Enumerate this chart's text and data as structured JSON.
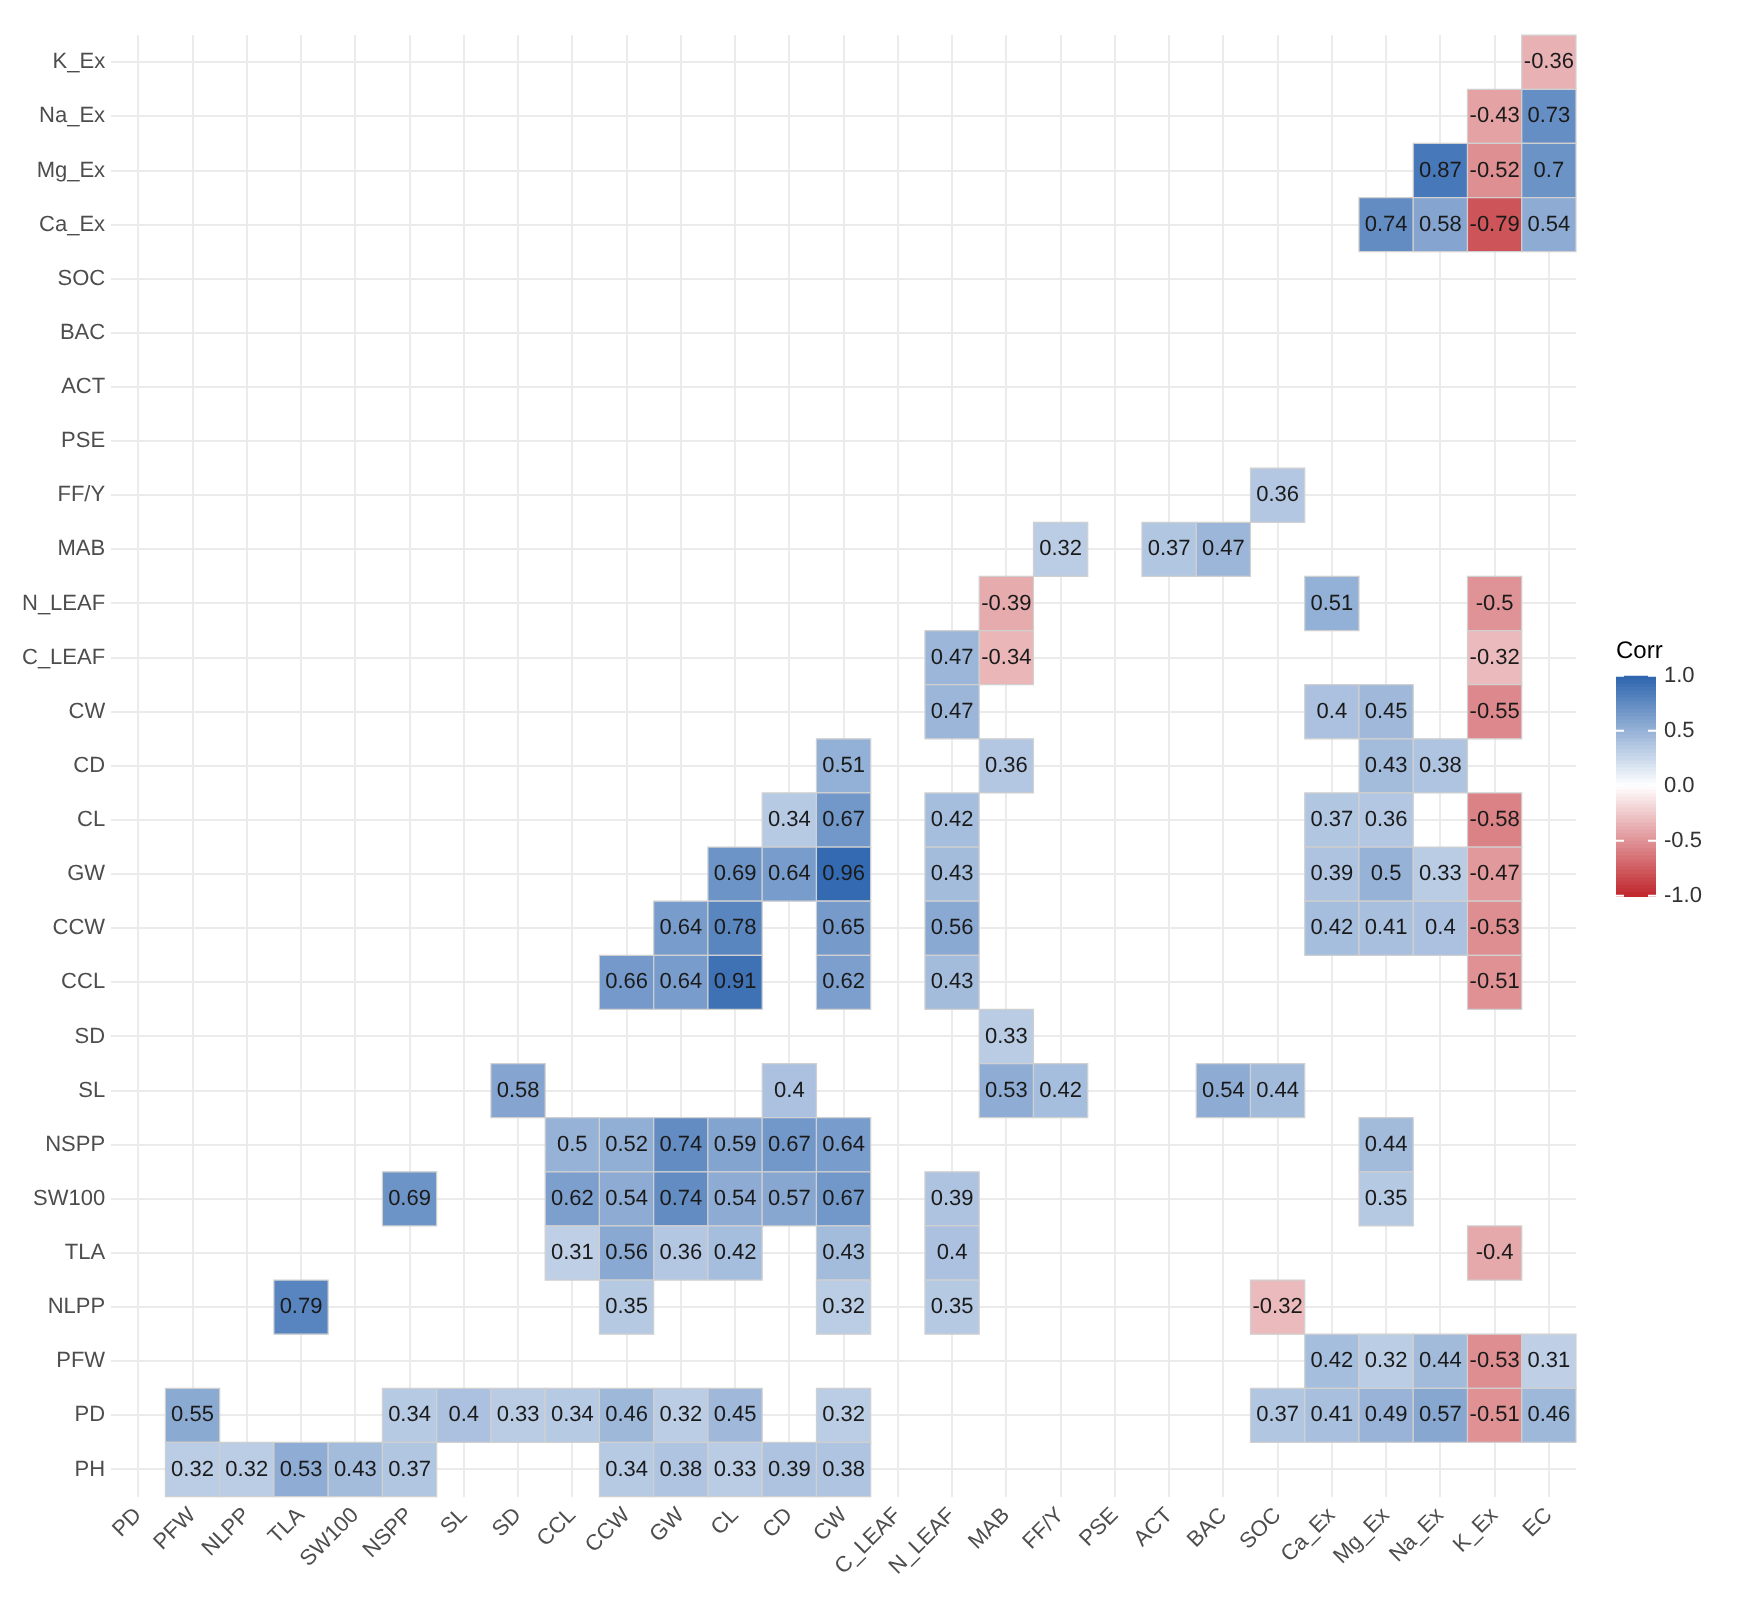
{
  "chart_data": {
    "type": "heatmap",
    "legend_title": "Corr",
    "categories": [
      "PD",
      "PFW",
      "NLPP",
      "TLA",
      "SW100",
      "NSPP",
      "SL",
      "SD",
      "CCL",
      "CCW",
      "GW",
      "CL",
      "CD",
      "CW",
      "C_LEAF",
      "N_LEAF",
      "MAB",
      "FF/Y",
      "PSE",
      "ACT",
      "BAC",
      "SOC",
      "Ca_Ex",
      "Mg_Ex",
      "Na_Ex",
      "K_Ex",
      "EC"
    ],
    "y_categories": [
      "K_Ex",
      "Na_Ex",
      "Mg_Ex",
      "Ca_Ex",
      "SOC",
      "BAC",
      "ACT",
      "PSE",
      "FF/Y",
      "MAB",
      "N_LEAF",
      "C_LEAF",
      "CW",
      "CD",
      "CL",
      "GW",
      "CCW",
      "CCL",
      "SD",
      "SL",
      "NSPP",
      "SW100",
      "TLA",
      "NLPP",
      "PFW",
      "PD",
      "PH"
    ],
    "cells": [
      [
        null,
        null,
        null,
        null,
        null,
        null,
        null,
        null,
        null,
        null,
        null,
        null,
        null,
        null,
        null,
        null,
        null,
        null,
        null,
        null,
        null,
        null,
        null,
        null,
        null,
        null,
        -0.36
      ],
      [
        null,
        null,
        null,
        null,
        null,
        null,
        null,
        null,
        null,
        null,
        null,
        null,
        null,
        null,
        null,
        null,
        null,
        null,
        null,
        null,
        null,
        null,
        null,
        null,
        null,
        -0.43,
        0.73
      ],
      [
        null,
        null,
        null,
        null,
        null,
        null,
        null,
        null,
        null,
        null,
        null,
        null,
        null,
        null,
        null,
        null,
        null,
        null,
        null,
        null,
        null,
        null,
        null,
        null,
        0.87,
        -0.52,
        0.7
      ],
      [
        null,
        null,
        null,
        null,
        null,
        null,
        null,
        null,
        null,
        null,
        null,
        null,
        null,
        null,
        null,
        null,
        null,
        null,
        null,
        null,
        null,
        null,
        null,
        0.74,
        0.58,
        -0.79,
        0.54
      ],
      [
        null,
        null,
        null,
        null,
        null,
        null,
        null,
        null,
        null,
        null,
        null,
        null,
        null,
        null,
        null,
        null,
        null,
        null,
        null,
        null,
        null,
        null,
        null,
        null,
        null,
        null,
        null
      ],
      [
        null,
        null,
        null,
        null,
        null,
        null,
        null,
        null,
        null,
        null,
        null,
        null,
        null,
        null,
        null,
        null,
        null,
        null,
        null,
        null,
        null,
        null,
        null,
        null,
        null,
        null,
        null
      ],
      [
        null,
        null,
        null,
        null,
        null,
        null,
        null,
        null,
        null,
        null,
        null,
        null,
        null,
        null,
        null,
        null,
        null,
        null,
        null,
        null,
        null,
        null,
        null,
        null,
        null,
        null,
        null
      ],
      [
        null,
        null,
        null,
        null,
        null,
        null,
        null,
        null,
        null,
        null,
        null,
        null,
        null,
        null,
        null,
        null,
        null,
        null,
        null,
        null,
        null,
        null,
        null,
        null,
        null,
        null,
        null
      ],
      [
        null,
        null,
        null,
        null,
        null,
        null,
        null,
        null,
        null,
        null,
        null,
        null,
        null,
        null,
        null,
        null,
        null,
        null,
        null,
        null,
        null,
        0.36,
        null,
        null,
        null,
        null,
        null
      ],
      [
        null,
        null,
        null,
        null,
        null,
        null,
        null,
        null,
        null,
        null,
        null,
        null,
        null,
        null,
        null,
        null,
        null,
        0.32,
        null,
        0.37,
        0.47,
        null,
        null,
        null,
        null,
        null,
        null
      ],
      [
        null,
        null,
        null,
        null,
        null,
        null,
        null,
        null,
        null,
        null,
        null,
        null,
        null,
        null,
        null,
        null,
        -0.39,
        null,
        null,
        null,
        null,
        null,
        0.51,
        null,
        null,
        -0.5,
        null
      ],
      [
        null,
        null,
        null,
        null,
        null,
        null,
        null,
        null,
        null,
        null,
        null,
        null,
        null,
        null,
        null,
        0.47,
        -0.34,
        null,
        null,
        null,
        null,
        null,
        null,
        null,
        null,
        -0.32,
        null
      ],
      [
        null,
        null,
        null,
        null,
        null,
        null,
        null,
        null,
        null,
        null,
        null,
        null,
        null,
        null,
        null,
        0.47,
        null,
        null,
        null,
        null,
        null,
        null,
        0.4,
        0.45,
        null,
        -0.55,
        null
      ],
      [
        null,
        null,
        null,
        null,
        null,
        null,
        null,
        null,
        null,
        null,
        null,
        null,
        null,
        0.51,
        null,
        null,
        0.36,
        null,
        null,
        null,
        null,
        null,
        null,
        0.43,
        0.38,
        null,
        null
      ],
      [
        null,
        null,
        null,
        null,
        null,
        null,
        null,
        null,
        null,
        null,
        null,
        null,
        0.34,
        0.67,
        null,
        0.42,
        null,
        null,
        null,
        null,
        null,
        null,
        0.37,
        0.36,
        null,
        -0.58,
        null
      ],
      [
        null,
        null,
        null,
        null,
        null,
        null,
        null,
        null,
        null,
        null,
        null,
        0.69,
        0.64,
        0.96,
        null,
        0.43,
        null,
        null,
        null,
        null,
        null,
        null,
        0.39,
        0.5,
        0.33,
        -0.47,
        null
      ],
      [
        null,
        null,
        null,
        null,
        null,
        null,
        null,
        null,
        null,
        null,
        0.64,
        0.78,
        null,
        0.65,
        null,
        0.56,
        null,
        null,
        null,
        null,
        null,
        null,
        0.42,
        0.41,
        0.4,
        -0.53,
        null
      ],
      [
        null,
        null,
        null,
        null,
        null,
        null,
        null,
        null,
        null,
        0.66,
        0.64,
        0.91,
        null,
        0.62,
        null,
        0.43,
        null,
        null,
        null,
        null,
        null,
        null,
        null,
        null,
        null,
        -0.51,
        null
      ],
      [
        null,
        null,
        null,
        null,
        null,
        null,
        null,
        null,
        null,
        null,
        null,
        null,
        null,
        null,
        null,
        null,
        0.33,
        null,
        null,
        null,
        null,
        null,
        null,
        null,
        null,
        null,
        null
      ],
      [
        null,
        null,
        null,
        null,
        null,
        null,
        null,
        0.58,
        null,
        null,
        null,
        null,
        0.4,
        null,
        null,
        null,
        0.53,
        0.42,
        null,
        null,
        0.54,
        0.44,
        null,
        null,
        null,
        null,
        null
      ],
      [
        null,
        null,
        null,
        null,
        null,
        null,
        null,
        null,
        0.5,
        0.52,
        0.74,
        0.59,
        0.67,
        0.64,
        null,
        null,
        null,
        null,
        null,
        null,
        null,
        null,
        null,
        0.44,
        null,
        null,
        null
      ],
      [
        null,
        null,
        null,
        null,
        null,
        0.69,
        null,
        null,
        0.62,
        0.54,
        0.74,
        0.54,
        0.57,
        0.67,
        null,
        0.39,
        null,
        null,
        null,
        null,
        null,
        null,
        null,
        0.35,
        null,
        null,
        null
      ],
      [
        null,
        null,
        null,
        null,
        null,
        null,
        null,
        null,
        0.31,
        0.56,
        0.36,
        0.42,
        null,
        0.43,
        null,
        0.4,
        null,
        null,
        null,
        null,
        null,
        null,
        null,
        null,
        null,
        -0.4,
        null
      ],
      [
        null,
        null,
        null,
        0.79,
        null,
        null,
        null,
        null,
        null,
        0.35,
        null,
        null,
        null,
        0.32,
        null,
        0.35,
        null,
        null,
        null,
        null,
        null,
        -0.32,
        null,
        null,
        null,
        null,
        null
      ],
      [
        null,
        null,
        null,
        null,
        null,
        null,
        null,
        null,
        null,
        null,
        null,
        null,
        null,
        null,
        null,
        null,
        null,
        null,
        null,
        null,
        null,
        null,
        0.42,
        0.32,
        0.44,
        -0.53,
        0.31
      ],
      [
        null,
        0.55,
        null,
        null,
        null,
        0.34,
        0.4,
        0.33,
        0.34,
        0.46,
        0.32,
        0.45,
        null,
        0.32,
        null,
        null,
        null,
        null,
        null,
        null,
        null,
        0.37,
        0.41,
        0.49,
        0.57,
        -0.51,
        0.46
      ],
      [
        null,
        0.32,
        0.32,
        0.53,
        0.43,
        0.37,
        null,
        null,
        null,
        0.34,
        0.38,
        0.33,
        0.39,
        0.38,
        null,
        null,
        null,
        null,
        null,
        null,
        null,
        null,
        null,
        null,
        null,
        null,
        null
      ]
    ],
    "colors": [
      "#c0272d",
      "#ffffff",
      "#2c64ae"
    ],
    "clim": [
      -1,
      1
    ],
    "cticks": [
      {
        "value": 1,
        "label": "1.0"
      },
      {
        "value": 0.5,
        "label": "0.5"
      },
      {
        "value": 0,
        "label": "0.0"
      },
      {
        "value": -0.5,
        "label": "-0.5"
      },
      {
        "value": -1,
        "label": "-1.0"
      }
    ],
    "data_labels": true,
    "grid": true
  }
}
